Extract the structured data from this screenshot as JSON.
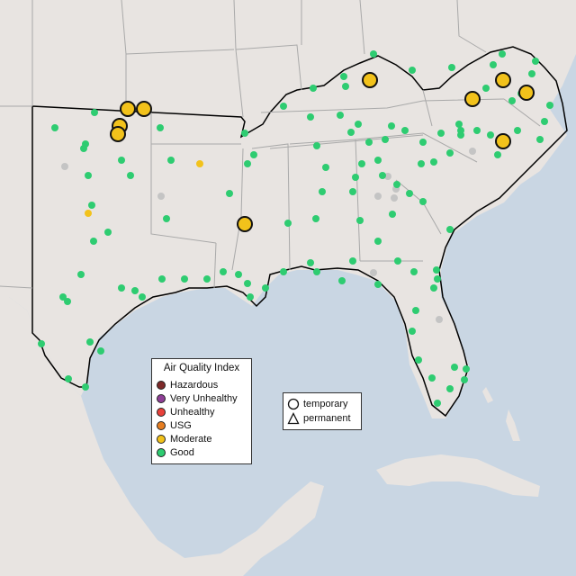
{
  "colors": {
    "water": "#c9d6e3",
    "land": "#e8e4e1",
    "state_border": "#a9a9a9",
    "region_outline": "#000000",
    "sensor_inactive": "#c4c4c4"
  },
  "legend": {
    "title": "Air Quality Index",
    "categories": [
      {
        "label": "Hazardous",
        "color": "#7e2a2a"
      },
      {
        "label": "Very Unhealthy",
        "color": "#8f3f97"
      },
      {
        "label": "Unhealthy",
        "color": "#e8413b"
      },
      {
        "label": "USG",
        "color": "#e67e22"
      },
      {
        "label": "Moderate",
        "color": "#f2c21b"
      },
      {
        "label": "Good",
        "color": "#2ecc71"
      }
    ]
  },
  "type_legend": {
    "items": [
      {
        "label": "temporary",
        "shape": "circle-icon"
      },
      {
        "label": "permanent",
        "shape": "triangle-icon"
      }
    ]
  }
}
